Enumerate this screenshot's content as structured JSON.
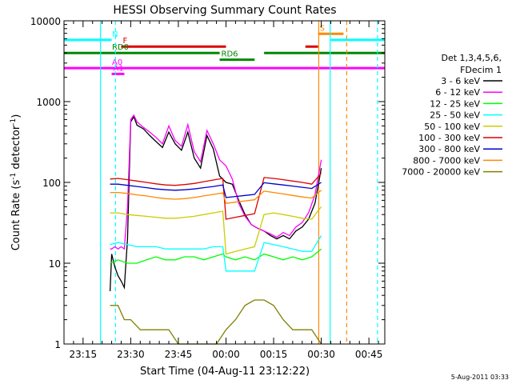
{
  "chart_data": {
    "type": "line",
    "title": "HESSI Observing Summary Count Rates",
    "xlabel": "Start Time (04-Aug-11 23:12:22)",
    "ylabel_main": "Count Rate (s",
    "ylabel_sup1": "-1",
    "ylabel_mid": " detector",
    "ylabel_sup2": "-1",
    "ylabel_end": ")",
    "footer": "5-Aug-2011 03:33",
    "yscale": "log",
    "ylim": [
      1,
      10000
    ],
    "xlim_minutes": [
      -3,
      98
    ],
    "x_ticks": [
      {
        "minute": 3,
        "label": "23:15"
      },
      {
        "minute": 33,
        "label": "23:45"
      },
      {
        "minute": 48,
        "label": "00:00"
      },
      {
        "minute": 63,
        "label": "00:15"
      },
      {
        "minute": 78,
        "label": "00:30"
      },
      {
        "minute": 93,
        "label": "00:45"
      },
      {
        "minute": 18,
        "label": "23:30"
      }
    ],
    "y_ticks": [
      {
        "value": 1,
        "label": "1"
      },
      {
        "value": 10,
        "label": "10"
      },
      {
        "value": 100,
        "label": "100"
      },
      {
        "value": 1000,
        "label": "1000"
      },
      {
        "value": 10000,
        "label": "10000"
      }
    ],
    "legend": {
      "header1": "Det 1,3,4,5,6,",
      "header2": "FDecim 1",
      "placement": "right",
      "items": [
        {
          "label": "3 - 6 keV",
          "color": "#000000"
        },
        {
          "label": "6 - 12 keV",
          "color": "#ff00ff"
        },
        {
          "label": "12 - 25 keV",
          "color": "#00ff00"
        },
        {
          "label": "25 - 50 keV",
          "color": "#00ffff"
        },
        {
          "label": "50 - 100 keV",
          "color": "#cccc00"
        },
        {
          "label": "100 - 300 keV",
          "color": "#dd0000"
        },
        {
          "label": "300 - 800 keV",
          "color": "#0000cc"
        },
        {
          "label": "800 - 7000 keV",
          "color": "#ff8800"
        },
        {
          "label": "7000 - 20000 keV",
          "color": "#808000"
        }
      ]
    },
    "flags": [
      {
        "label": "N",
        "color": "#00ffff",
        "y": 5800,
        "segments": [
          [
            -3,
            12
          ],
          [
            81,
            98
          ]
        ]
      },
      {
        "label": "F",
        "color": "#dd0000",
        "y": 4800,
        "segments": [
          [
            15,
            48
          ],
          [
            73,
            77
          ]
        ]
      },
      {
        "label": "S",
        "color": "#ff8800",
        "y": 6900,
        "segments": [
          [
            77,
            85
          ]
        ]
      },
      {
        "label": "RD0",
        "color": "#008800",
        "y": 4000,
        "segments": [
          [
            -3,
            46
          ],
          [
            60,
            98
          ]
        ]
      },
      {
        "label": "RD6",
        "color": "#008800",
        "y": 3300,
        "segments": [
          [
            46,
            57
          ]
        ]
      },
      {
        "label": "A0",
        "color": "#ff00ff",
        "y": 2600,
        "segments": [
          [
            -3,
            98
          ]
        ]
      },
      {
        "label": "A1",
        "color": "#ff00ff",
        "y": 2200,
        "segments": [
          [
            12,
            16
          ]
        ]
      }
    ],
    "vlines": [
      {
        "minute": 8.5,
        "color": "#00ffff",
        "style": "solid"
      },
      {
        "minute": 13.2,
        "color": "#00ffff",
        "style": "dashed"
      },
      {
        "minute": 77.2,
        "color": "#ff8800",
        "style": "solid"
      },
      {
        "minute": 80.8,
        "color": "#00ffff",
        "style": "solid"
      },
      {
        "minute": 86.0,
        "color": "#ff8800",
        "style": "dashed"
      },
      {
        "minute": 95.7,
        "color": "#00ffff",
        "style": "dashed"
      }
    ],
    "series": [
      {
        "name": "3 - 6 keV",
        "color": "#000000",
        "x": [
          11.5,
          12,
          13,
          14,
          15,
          16,
          17,
          18,
          19,
          20,
          22,
          24,
          26,
          28,
          30,
          32,
          34,
          36,
          38,
          40,
          42,
          44,
          46,
          48,
          50,
          52,
          54,
          56,
          58,
          60,
          62,
          64,
          66,
          68,
          70,
          72,
          74,
          76,
          78
        ],
        "y": [
          4.5,
          13,
          9,
          7,
          6,
          5,
          20,
          560,
          650,
          510,
          460,
          380,
          320,
          270,
          420,
          300,
          250,
          420,
          200,
          150,
          380,
          260,
          120,
          100,
          95,
          60,
          40,
          30,
          27,
          25,
          22,
          20,
          22,
          20,
          25,
          28,
          35,
          55,
          150
        ]
      },
      {
        "name": "6 - 12 keV",
        "color": "#ff00ff",
        "x": [
          11.5,
          12,
          13,
          14,
          15,
          16,
          17,
          18,
          19,
          20,
          22,
          24,
          26,
          28,
          30,
          32,
          34,
          36,
          38,
          40,
          42,
          44,
          46,
          48,
          50,
          52,
          54,
          56,
          58,
          60,
          62,
          64,
          66,
          68,
          70,
          72,
          74,
          76,
          78
        ],
        "y": [
          15,
          15,
          16,
          15,
          16,
          15,
          50,
          600,
          680,
          560,
          480,
          420,
          360,
          300,
          500,
          330,
          280,
          520,
          240,
          180,
          440,
          300,
          190,
          160,
          110,
          55,
          38,
          30,
          27,
          25,
          23,
          21,
          24,
          22,
          28,
          32,
          42,
          70,
          190
        ]
      },
      {
        "name": "12 - 25 keV",
        "color": "#00ff00",
        "x": [
          11.5,
          14,
          17,
          20,
          23,
          26,
          29,
          32,
          35,
          38,
          41,
          44,
          47,
          48,
          51,
          54,
          57,
          60,
          63,
          66,
          69,
          72,
          75,
          78
        ],
        "y": [
          10,
          11,
          10,
          10,
          11,
          12,
          11,
          11,
          12,
          12,
          11,
          12,
          13,
          12,
          11,
          12,
          11,
          13,
          12,
          11,
          12,
          11,
          12,
          15
        ]
      },
      {
        "name": "25 - 50 keV",
        "color": "#00ffff",
        "x": [
          11.5,
          14,
          17,
          20,
          23,
          26,
          29,
          32,
          35,
          38,
          41,
          44,
          47,
          48,
          51,
          54,
          57,
          60,
          63,
          66,
          69,
          72,
          75,
          78
        ],
        "y": [
          17,
          18,
          17,
          16,
          16,
          16,
          15,
          15,
          15,
          15,
          15,
          16,
          16,
          8,
          8,
          8,
          8,
          18,
          17,
          16,
          15,
          14,
          14,
          22
        ]
      },
      {
        "name": "50 - 100 keV",
        "color": "#cccc00",
        "x": [
          11.5,
          14,
          17,
          20,
          23,
          26,
          29,
          32,
          35,
          38,
          41,
          44,
          47,
          48,
          51,
          54,
          57,
          60,
          63,
          66,
          69,
          72,
          75,
          78
        ],
        "y": [
          42,
          42,
          40,
          39,
          38,
          37,
          36,
          36,
          37,
          38,
          40,
          42,
          44,
          13,
          14,
          15,
          16,
          40,
          42,
          40,
          38,
          36,
          35,
          50
        ]
      },
      {
        "name": "100 - 300 keV",
        "color": "#dd0000",
        "x": [
          11.5,
          14,
          17,
          20,
          23,
          26,
          29,
          32,
          35,
          38,
          41,
          44,
          47,
          48,
          51,
          54,
          57,
          60,
          63,
          66,
          69,
          72,
          75,
          78
        ],
        "y": [
          110,
          112,
          108,
          104,
          100,
          96,
          93,
          92,
          94,
          97,
          102,
          107,
          112,
          35,
          37,
          39,
          41,
          115,
          112,
          108,
          104,
          100,
          95,
          130
        ]
      },
      {
        "name": "300 - 800 keV",
        "color": "#0000cc",
        "x": [
          11.5,
          14,
          17,
          20,
          23,
          26,
          29,
          32,
          35,
          38,
          41,
          44,
          47,
          48,
          51,
          54,
          57,
          60,
          63,
          66,
          69,
          72,
          75,
          78
        ],
        "y": [
          95,
          95,
          92,
          89,
          86,
          83,
          81,
          80,
          81,
          83,
          86,
          89,
          93,
          65,
          67,
          69,
          71,
          99,
          96,
          93,
          90,
          87,
          84,
          100
        ]
      },
      {
        "name": "800 - 7000 keV",
        "color": "#ff8800",
        "x": [
          11.5,
          14,
          17,
          20,
          23,
          26,
          29,
          32,
          35,
          38,
          41,
          44,
          47,
          48,
          51,
          54,
          57,
          60,
          63,
          66,
          69,
          72,
          75,
          78
        ],
        "y": [
          75,
          75,
          73,
          70,
          68,
          65,
          63,
          62,
          63,
          65,
          68,
          71,
          74,
          55,
          57,
          59,
          61,
          78,
          75,
          72,
          69,
          66,
          64,
          80
        ]
      },
      {
        "name": "7000 - 20000 keV",
        "color": "#808000",
        "x": [
          11.5,
          14,
          16,
          18,
          21,
          24,
          27,
          30,
          33,
          36,
          39,
          42,
          45,
          48,
          51,
          54,
          57,
          60,
          63,
          66,
          69,
          72,
          75,
          78
        ],
        "y": [
          3,
          3,
          2,
          2,
          1.5,
          1.5,
          1.5,
          1.5,
          1,
          1,
          1,
          1,
          1,
          1.5,
          2,
          3,
          3.5,
          3.5,
          3,
          2,
          1.5,
          1.5,
          1.5,
          1
        ]
      }
    ]
  }
}
